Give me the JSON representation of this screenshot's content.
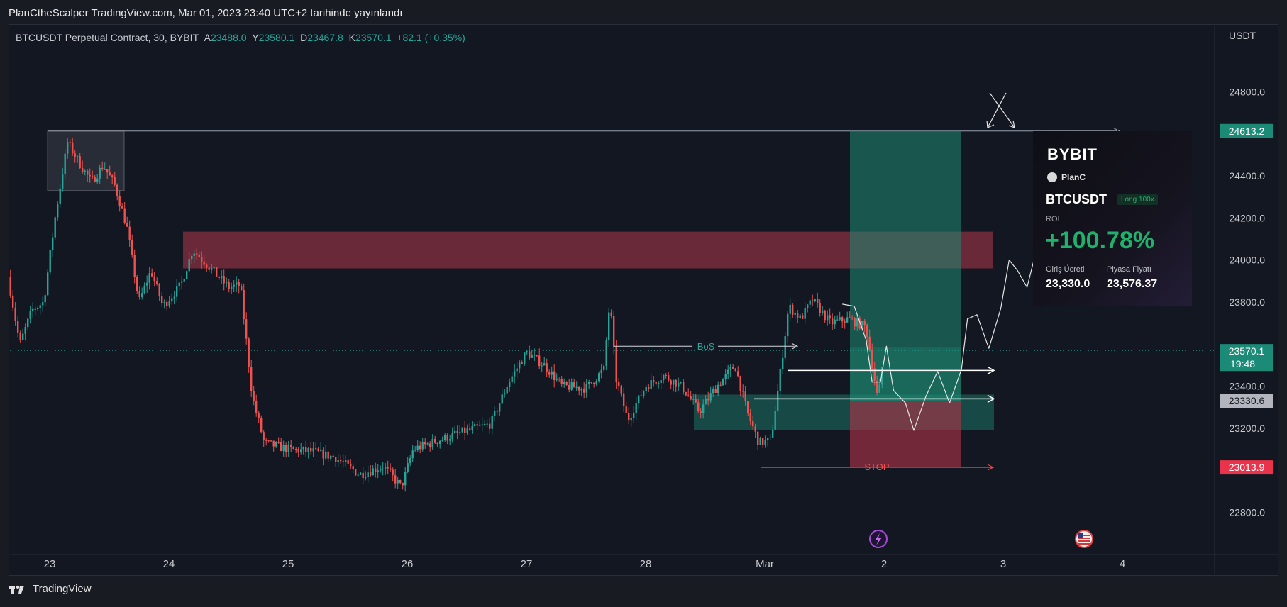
{
  "header": {
    "publish_line": "PlanCtheScalper TradingView.com, Mar 01, 2023 23:40 UTC+2 tarihinde yayınlandı"
  },
  "legend": {
    "symbol": "BTCUSDT Perpetual Contract, 30, BYBIT",
    "open_label": "A",
    "open": "23488.0",
    "high_label": "Y",
    "high": "23580.1",
    "low_label": "D",
    "low": "23467.8",
    "close_label": "K",
    "close": "23570.1",
    "change": "+82.1 (+0.35%)"
  },
  "footer": {
    "brand": "TradingView"
  },
  "bybit_card": {
    "logo": "BYBIT",
    "user": "PlanC",
    "symbol": "BTCUSDT",
    "side": "Long 100x",
    "roi_label": "ROI",
    "roi": "+100.78%",
    "entry_label": "Giriş Ücreti",
    "entry": "23,330.0",
    "market_label": "Piyasa Fiyatı",
    "market": "23,576.37"
  },
  "colors": {
    "bull": "#26a69a",
    "bear": "#ef5350",
    "background": "#131722",
    "resistance_zone": "#b2394a",
    "target_zone": "#1d8a73",
    "stop_zone": "#b23448",
    "current_price_tag": "#1b8a77",
    "entry_tag": "#b2b5be",
    "stop_tag": "#e8334a",
    "target_tag": "#1b8a77"
  },
  "chart_data": {
    "type": "candlestick",
    "symbol": "BTCUSDT",
    "timeframe": "30",
    "exchange": "BYBIT",
    "currency": "USDT",
    "ylim": [
      22640,
      24980
    ],
    "y_ticks": [
      22800,
      23000,
      23200,
      23400,
      23600,
      23800,
      24000,
      24200,
      24400,
      24600,
      24800
    ],
    "y_tick_labels": [
      "22800.0",
      "23000.0",
      "23200.0",
      "23400.0",
      "23600.0",
      "23800.0",
      "24000.0",
      "24200.0",
      "24400.0",
      "24600.0",
      "24800.0"
    ],
    "x_ticks": [
      {
        "day": 23,
        "label": "23"
      },
      {
        "day": 24,
        "label": "24"
      },
      {
        "day": 25,
        "label": "25"
      },
      {
        "day": 26,
        "label": "26"
      },
      {
        "day": 27,
        "label": "27"
      },
      {
        "day": 28,
        "label": "28"
      },
      {
        "day": 29,
        "label": "Mar"
      },
      {
        "day": 30,
        "label": "2"
      },
      {
        "day": 31,
        "label": "3"
      },
      {
        "day": 32,
        "label": "4"
      }
    ],
    "price_path": [
      [
        22.65,
        23920
      ],
      [
        22.75,
        23600
      ],
      [
        22.85,
        23760
      ],
      [
        22.95,
        23800
      ],
      [
        23.05,
        24220
      ],
      [
        23.15,
        24560
      ],
      [
        23.25,
        24460
      ],
      [
        23.35,
        24370
      ],
      [
        23.45,
        24450
      ],
      [
        23.55,
        24350
      ],
      [
        23.65,
        24150
      ],
      [
        23.75,
        23800
      ],
      [
        23.85,
        23950
      ],
      [
        23.95,
        23780
      ],
      [
        24.1,
        23880
      ],
      [
        24.2,
        24050
      ],
      [
        24.35,
        23960
      ],
      [
        24.5,
        23870
      ],
      [
        24.6,
        23880
      ],
      [
        24.7,
        23350
      ],
      [
        24.8,
        23130
      ],
      [
        25.0,
        23100
      ],
      [
        25.2,
        23090
      ],
      [
        25.4,
        23060
      ],
      [
        25.6,
        22980
      ],
      [
        25.8,
        23020
      ],
      [
        25.95,
        22920
      ],
      [
        26.05,
        23100
      ],
      [
        26.25,
        23140
      ],
      [
        26.45,
        23180
      ],
      [
        26.7,
        23220
      ],
      [
        26.85,
        23420
      ],
      [
        27.0,
        23560
      ],
      [
        27.15,
        23500
      ],
      [
        27.3,
        23400
      ],
      [
        27.5,
        23390
      ],
      [
        27.65,
        23480
      ],
      [
        27.7,
        23810
      ],
      [
        27.75,
        23440
      ],
      [
        27.85,
        23240
      ],
      [
        28.0,
        23400
      ],
      [
        28.15,
        23450
      ],
      [
        28.3,
        23400
      ],
      [
        28.45,
        23280
      ],
      [
        28.6,
        23400
      ],
      [
        28.75,
        23500
      ],
      [
        28.85,
        23280
      ],
      [
        28.95,
        23130
      ],
      [
        29.05,
        23140
      ],
      [
        29.12,
        23420
      ],
      [
        29.2,
        23780
      ],
      [
        29.3,
        23720
      ],
      [
        29.4,
        23810
      ],
      [
        29.55,
        23700
      ],
      [
        29.7,
        23720
      ],
      [
        29.85,
        23680
      ],
      [
        29.95,
        23330
      ],
      [
        30.0,
        23570.1
      ]
    ],
    "current_price": 23570.1,
    "candle_countdown": "19:48",
    "levels": {
      "top_box_high": 24613.2,
      "resistance_zone": [
        23960,
        24135
      ],
      "demand_zone": [
        23190,
        23360
      ],
      "position_entry": 23330.6,
      "position_target": 24613.2,
      "position_stop": 23013.9,
      "bos_level": 23590,
      "arrow_level_1": 23475,
      "arrow_level_2": 23340
    },
    "annotations": [
      "BoS",
      "STOP"
    ],
    "price_tags": [
      {
        "value": 24613.2,
        "label": "24613.2",
        "role": "target"
      },
      {
        "value": 23570.1,
        "label": "23570.1",
        "role": "current"
      },
      {
        "value": 23330.6,
        "label": "23330.6",
        "role": "entry"
      },
      {
        "value": 23013.9,
        "label": "23013.9",
        "role": "stop"
      }
    ],
    "projected_path": [
      [
        29.65,
        23790
      ],
      [
        29.75,
        23780
      ],
      [
        29.85,
        23620
      ],
      [
        29.9,
        23420
      ],
      [
        29.97,
        23420
      ],
      [
        30.02,
        23590
      ],
      [
        30.08,
        23380
      ],
      [
        30.18,
        23320
      ],
      [
        30.25,
        23190
      ],
      [
        30.35,
        23350
      ],
      [
        30.45,
        23470
      ],
      [
        30.55,
        23320
      ],
      [
        30.65,
        23480
      ],
      [
        30.7,
        23720
      ],
      [
        30.78,
        23740
      ],
      [
        30.88,
        23580
      ],
      [
        30.98,
        23770
      ],
      [
        31.05,
        24000
      ],
      [
        31.12,
        23950
      ],
      [
        31.2,
        23870
      ],
      [
        31.28,
        24050
      ],
      [
        31.38,
        24260
      ],
      [
        31.45,
        24480
      ]
    ]
  }
}
